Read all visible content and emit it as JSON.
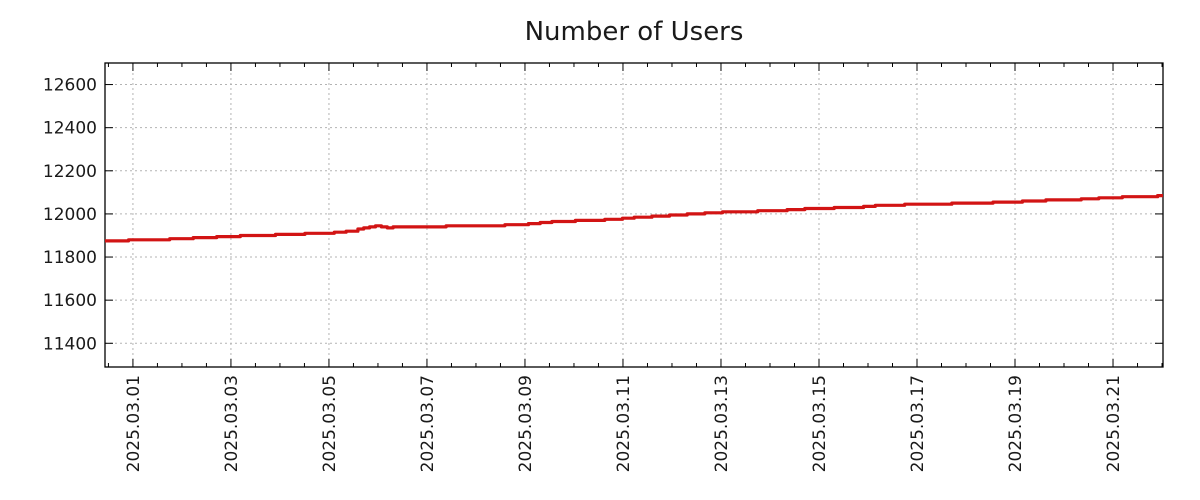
{
  "title": "Number of Users",
  "chart_data": {
    "type": "line",
    "title": "Number of Users",
    "xlabel": "",
    "ylabel": "",
    "legend": {
      "show": false
    },
    "grid": {
      "show": true,
      "style": "dashed",
      "color": "#b3b3b3"
    },
    "x_axis": {
      "unit": "date",
      "epoch_label": "2025.03.01",
      "range_days": [
        -0.57,
        21.02
      ],
      "minor_tick_interval_days": 0.5,
      "tick_label_rotation_deg": -90,
      "major_ticks": [
        {
          "day": 0,
          "label": "2025.03.01"
        },
        {
          "day": 2,
          "label": "2025.03.03"
        },
        {
          "day": 4,
          "label": "2025.03.05"
        },
        {
          "day": 6,
          "label": "2025.03.07"
        },
        {
          "day": 8,
          "label": "2025.03.09"
        },
        {
          "day": 10,
          "label": "2025.03.11"
        },
        {
          "day": 12,
          "label": "2025.03.13"
        },
        {
          "day": 14,
          "label": "2025.03.15"
        },
        {
          "day": 16,
          "label": "2025.03.17"
        },
        {
          "day": 18,
          "label": "2025.03.19"
        },
        {
          "day": 20,
          "label": "2025.03.21"
        }
      ]
    },
    "y_axis": {
      "range": [
        11290,
        12700
      ],
      "major_ticks": [
        {
          "value": 11400,
          "label": "11400"
        },
        {
          "value": 11600,
          "label": "11600"
        },
        {
          "value": 11800,
          "label": "11800"
        },
        {
          "value": 12000,
          "label": "12000"
        },
        {
          "value": 12200,
          "label": "12200"
        },
        {
          "value": 12400,
          "label": "12400"
        },
        {
          "value": 12600,
          "label": "12600"
        }
      ]
    },
    "series": [
      {
        "name": "Number of Users",
        "color": "#d21414",
        "points_day_value": [
          [
            -0.57,
            11876
          ],
          [
            0.0,
            11878
          ],
          [
            0.5,
            11881
          ],
          [
            1.0,
            11886
          ],
          [
            1.5,
            11891
          ],
          [
            2.0,
            11896
          ],
          [
            2.5,
            11900
          ],
          [
            3.0,
            11904
          ],
          [
            3.5,
            11908
          ],
          [
            4.0,
            11912
          ],
          [
            4.5,
            11922
          ],
          [
            4.75,
            11938
          ],
          [
            4.95,
            11944
          ],
          [
            5.1,
            11937
          ],
          [
            5.5,
            11939
          ],
          [
            6.0,
            11941
          ],
          [
            6.5,
            11943
          ],
          [
            7.0,
            11945
          ],
          [
            7.5,
            11947
          ],
          [
            8.0,
            11951
          ],
          [
            8.4,
            11962
          ],
          [
            8.8,
            11966
          ],
          [
            9.3,
            11970
          ],
          [
            9.8,
            11975
          ],
          [
            10.3,
            11984
          ],
          [
            10.8,
            11992
          ],
          [
            11.3,
            11998
          ],
          [
            11.8,
            12006
          ],
          [
            12.3,
            12010
          ],
          [
            12.8,
            12013
          ],
          [
            13.3,
            12018
          ],
          [
            13.8,
            12024
          ],
          [
            14.3,
            12028
          ],
          [
            14.8,
            12032
          ],
          [
            15.3,
            12040
          ],
          [
            15.8,
            12043
          ],
          [
            16.3,
            12046
          ],
          [
            16.8,
            12048
          ],
          [
            17.3,
            12051
          ],
          [
            17.8,
            12054
          ],
          [
            18.3,
            12060
          ],
          [
            18.8,
            12064
          ],
          [
            19.3,
            12068
          ],
          [
            19.8,
            12074
          ],
          [
            20.2,
            12078
          ],
          [
            20.5,
            12080
          ],
          [
            20.8,
            12082
          ],
          [
            21.02,
            12086
          ]
        ]
      }
    ]
  },
  "style": {
    "background": "#ffffff",
    "text_color": "#1a1a1a",
    "axis_color": "#000000",
    "grid_color": "#b3b3b3",
    "line_color": "#d21414"
  }
}
